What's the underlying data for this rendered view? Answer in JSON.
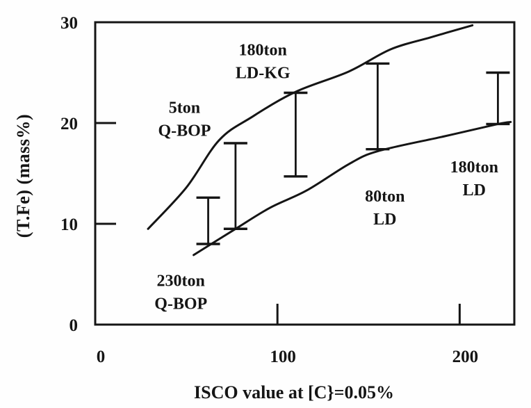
{
  "figure": {
    "background": "#fefefe",
    "ink": "#151515"
  },
  "chart_data": {
    "type": "line",
    "title": "",
    "xlabel": "ISCO value at [C}=0.05%",
    "ylabel": "(T.Fe) (mass%)",
    "xlim": [
      0,
      230
    ],
    "ylim": [
      0,
      30
    ],
    "grid": false,
    "frame": true,
    "xticks": [
      {
        "value": 0,
        "label": "0",
        "mark": false
      },
      {
        "value": 100,
        "label": "100",
        "mark": true
      },
      {
        "value": 200,
        "label": "200",
        "mark": true
      }
    ],
    "yticks": [
      {
        "value": 0,
        "label": "0",
        "mark": false
      },
      {
        "value": 10,
        "label": "10",
        "mark": true
      },
      {
        "value": 20,
        "label": "20",
        "mark": true
      },
      {
        "value": 30,
        "label": "30",
        "mark": false
      }
    ],
    "series": [
      {
        "name": "upper-bound-curve",
        "x": [
          29,
          50,
          68,
          86,
          110,
          139,
          162,
          184,
          207
        ],
        "y": [
          9.5,
          13.6,
          18.3,
          20.6,
          23.1,
          25.1,
          27.3,
          28.5,
          29.7
        ]
      },
      {
        "name": "lower-bound-curve",
        "x": [
          54,
          77,
          96,
          116,
          139,
          155,
          192,
          221,
          228
        ],
        "y": [
          6.9,
          9.5,
          11.6,
          13.3,
          15.9,
          17.2,
          18.7,
          19.9,
          20.1
        ]
      }
    ],
    "error_bars": [
      {
        "x": 62,
        "low": 8.0,
        "high": 12.6
      },
      {
        "x": 77,
        "low": 9.5,
        "high": 18.0
      },
      {
        "x": 110,
        "low": 14.7,
        "high": 23.0
      },
      {
        "x": 155,
        "low": 17.4,
        "high": 25.9
      },
      {
        "x": 221,
        "low": 19.9,
        "high": 25.0
      }
    ],
    "annotations": [
      {
        "lines": [
          "5ton",
          "Q-BOP"
        ],
        "x": 49,
        "y": 20.5
      },
      {
        "lines": [
          "180ton",
          "LD-KG"
        ],
        "x": 92,
        "y": 26.2
      },
      {
        "lines": [
          "230ton",
          "Q-BOP"
        ],
        "x": 47,
        "y": 3.3
      },
      {
        "lines": [
          "80ton",
          "LD"
        ],
        "x": 159,
        "y": 11.7
      },
      {
        "lines": [
          "180ton",
          "LD"
        ],
        "x": 208,
        "y": 14.6
      }
    ]
  }
}
